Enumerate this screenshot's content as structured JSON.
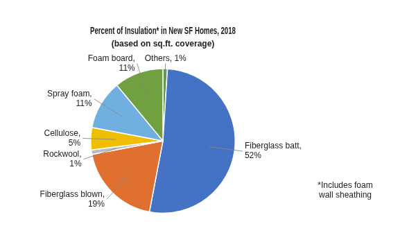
{
  "chart_data": {
    "type": "pie",
    "title": "Percent of Insulation* in New SF Homes, 2018",
    "subtitle": "(based on sq.ft. coverage)",
    "categories": [
      "Others, 1%",
      "Fiberglass batt,\n52%",
      "Fiberglass blown,\n19%",
      "Rockwool,\n1%",
      "Cellulose,\n5%",
      "Spray foam,\n11%",
      "Foam board,\n11%"
    ],
    "values": [
      1,
      52,
      19,
      1,
      5,
      11,
      11
    ],
    "colors": [
      "#5B9B3C",
      "#4472C4",
      "#E07030",
      "#BBBBBB",
      "#F0BE00",
      "#70B0E0",
      "#70A040"
    ],
    "annotation": "*Includes foam\nwall sheathing"
  }
}
